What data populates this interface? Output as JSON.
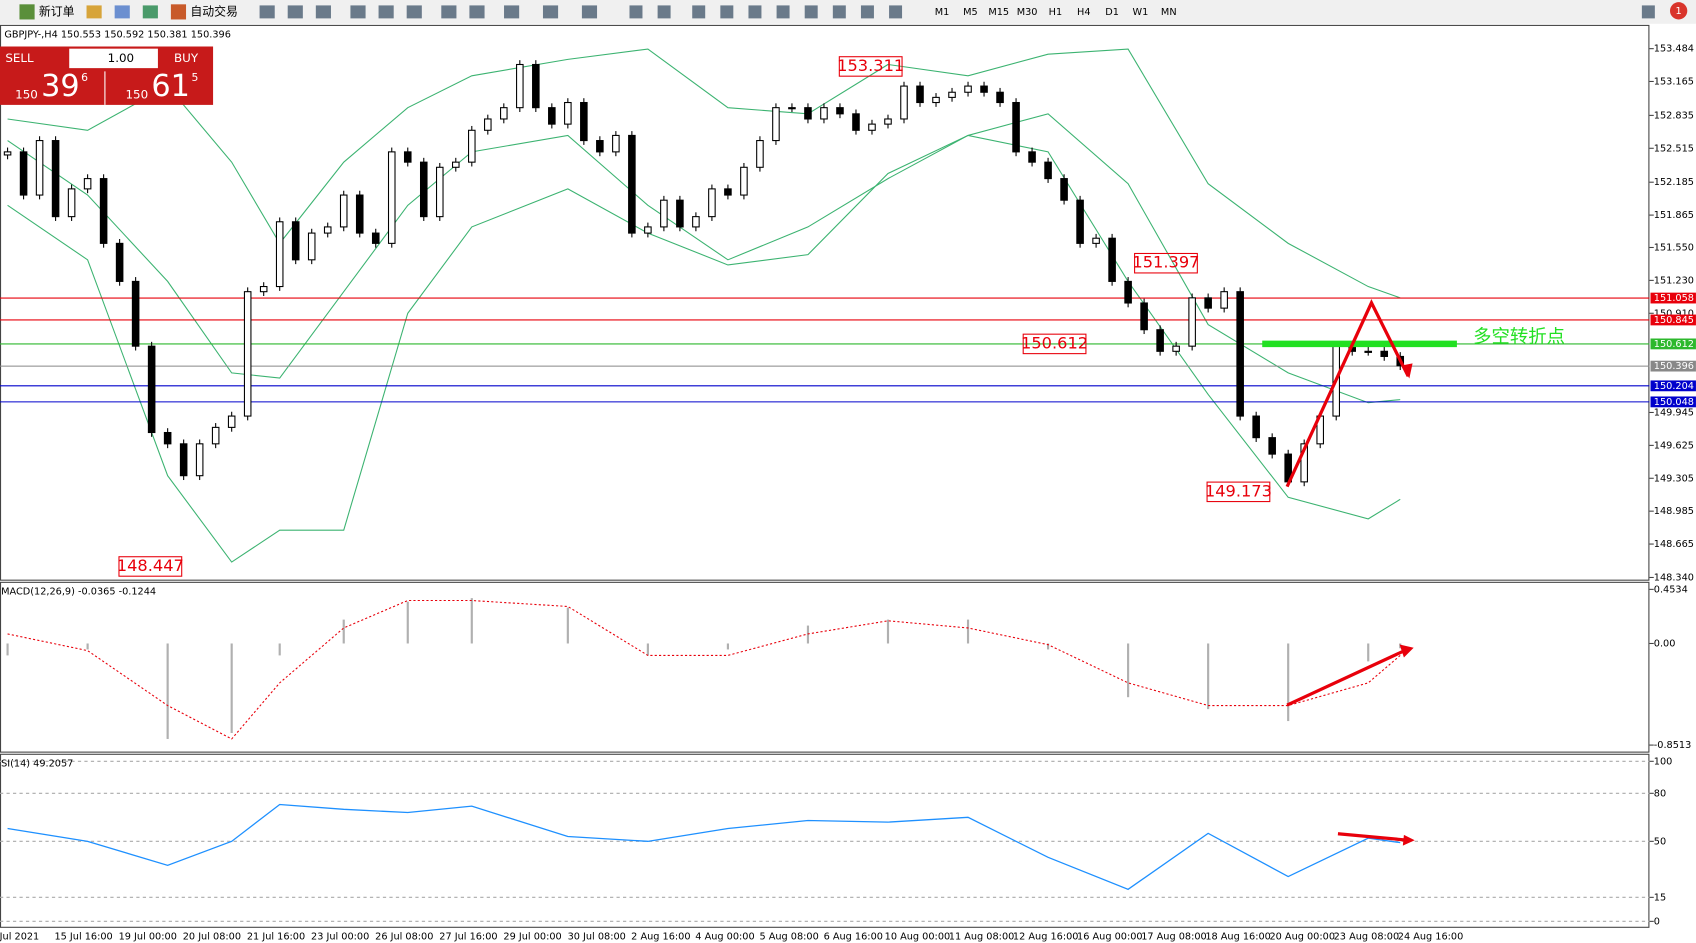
{
  "toolbar": {
    "new_order": "新订单",
    "auto_trading": "自动交易",
    "timeframes": [
      "M1",
      "M5",
      "M15",
      "M30",
      "H1",
      "H4",
      "D1",
      "W1",
      "MN"
    ],
    "alerts": "1"
  },
  "trade_panel": {
    "sell": "SELL",
    "buy": "BUY",
    "lot": "1.00",
    "bid_big": "150",
    "bid_main": "39",
    "bid_sup": "6",
    "ask_big": "150",
    "ask_main": "61",
    "ask_sup": "5"
  },
  "chart_data": [
    {
      "type": "candlestick",
      "title": "GBPJPY-,H4 150.553 150.592 150.381 150.396",
      "first_open": 152.45,
      "closes": [
        152.48,
        152.06,
        152.59,
        151.85,
        152.12,
        152.22,
        151.59,
        151.22,
        150.59,
        149.75,
        149.64,
        149.33,
        149.64,
        149.8,
        149.91,
        151.12,
        151.17,
        151.8,
        151.43,
        151.69,
        151.75,
        152.06,
        151.69,
        151.59,
        152.48,
        152.38,
        151.85,
        152.33,
        152.38,
        152.69,
        152.8,
        152.91,
        153.33,
        152.91,
        152.75,
        152.96,
        152.59,
        152.48,
        152.64,
        151.69,
        151.75,
        152.01,
        151.75,
        151.85,
        152.12,
        152.06,
        152.33,
        152.59,
        152.91,
        152.91,
        152.8,
        152.91,
        152.85,
        152.69,
        152.75,
        152.8,
        153.12,
        152.96,
        153.01,
        153.06,
        153.12,
        153.06,
        152.96,
        152.48,
        152.38,
        152.22,
        152.01,
        151.59,
        151.64,
        151.22,
        151.01,
        150.75,
        150.54,
        150.59,
        151.06,
        150.96,
        151.12,
        149.91,
        149.7,
        149.54,
        149.27,
        149.64,
        149.91,
        150.59,
        150.54,
        150.54,
        150.49,
        150.4
      ],
      "band_x": [
        0,
        5,
        10,
        14,
        17,
        21,
        25,
        29,
        35,
        40,
        45,
        50,
        55,
        60,
        65,
        70,
        75,
        80,
        85,
        87
      ],
      "upper": [
        152.8,
        152.69,
        153.12,
        152.38,
        151.59,
        152.38,
        152.91,
        153.22,
        153.38,
        153.48,
        152.91,
        152.85,
        153.33,
        153.22,
        153.43,
        153.48,
        152.17,
        151.59,
        151.17,
        151.06
      ],
      "middle": [
        152.59,
        152.06,
        151.22,
        150.33,
        150.28,
        151.12,
        151.96,
        152.48,
        152.64,
        151.96,
        151.43,
        151.75,
        152.22,
        152.64,
        152.85,
        152.17,
        150.8,
        150.33,
        150.04,
        150.07
      ],
      "lower": [
        151.96,
        151.43,
        149.33,
        148.49,
        148.8,
        148.8,
        150.91,
        151.75,
        152.12,
        151.69,
        151.38,
        151.48,
        152.27,
        152.64,
        152.48,
        151.22,
        150.12,
        149.12,
        148.91,
        149.1
      ],
      "band_color": "#3cb371",
      "ylim": [
        148.34,
        153.484
      ],
      "yticks": [
        153.484,
        153.165,
        152.835,
        152.515,
        152.185,
        151.865,
        {
          "value": 151.55,
          "label": "151.550"
        },
        {
          "value": 151.23,
          "label": "151.230"
        },
        {
          "value": 150.91,
          "label": "150.910"
        },
        149.945,
        149.625,
        149.305,
        148.985,
        148.665,
        {
          "value": 148.34,
          "label": "148.340"
        }
      ],
      "levels": [
        {
          "value": 151.058,
          "color": "#e8000b"
        },
        {
          "value": 150.845,
          "color": "#e8000b"
        },
        {
          "value": 150.612,
          "color": "#2db82d"
        },
        {
          "value": 150.396,
          "color": "#888888"
        },
        {
          "value": 150.204,
          "color": "#0000cc"
        },
        {
          "value": 150.048,
          "color": "#0000cc"
        }
      ],
      "annotations": [
        153.311,
        151.397,
        150.612,
        149.173,
        148.447
      ],
      "note": "多空转折点",
      "x_labels": [
        "Jul 2021",
        "15 Jul 16:00",
        "19 Jul 00:00",
        "20 Jul 08:00",
        "21 Jul 16:00",
        "23 Jul 00:00",
        "26 Jul 08:00",
        "27 Jul 16:00",
        "29 Jul 00:00",
        "30 Jul 08:00",
        "2 Aug 16:00",
        "4 Aug 00:00",
        "5 Aug 08:00",
        "6 Aug 16:00",
        "10 Aug 00:00",
        "11 Aug 08:00",
        "12 Aug 16:00",
        "16 Aug 00:00",
        "17 Aug 08:00",
        "18 Aug 16:00",
        "20 Aug 00:00",
        "23 Aug 08:00",
        "24 Aug 16:00"
      ]
    },
    {
      "type": "macd",
      "title": "MACD(12,26,9) -0.0365 -0.1244",
      "histogram": [
        -0.1,
        -0.05,
        -0.8,
        -0.75,
        -0.1,
        0.2,
        0.35,
        0.38,
        0.3,
        -0.1,
        -0.05,
        0.15,
        0.2,
        0.2,
        -0.05,
        -0.45,
        -0.55,
        -0.65,
        -0.15,
        -0.04
      ],
      "signal": [
        0.08,
        -0.06,
        -0.52,
        -0.8,
        -0.33,
        0.13,
        0.36,
        0.36,
        0.31,
        -0.1,
        -0.1,
        0.08,
        0.19,
        0.13,
        -0.01,
        -0.33,
        -0.52,
        -0.52,
        -0.33,
        -0.1
      ],
      "ylim": [
        -0.8513,
        0.4534
      ],
      "yticks": [
        0.4534,
        {
          "value": 0,
          "label": "0.00"
        },
        -0.8513
      ]
    },
    {
      "type": "rsi",
      "title": "SI(14) 49.2057",
      "values": [
        58,
        50,
        35,
        50,
        73,
        70,
        68,
        72,
        53,
        50,
        58,
        63,
        62,
        65,
        40,
        20,
        55,
        28,
        52,
        49.2
      ],
      "color": "#1e90ff",
      "ylim": [
        0,
        100
      ],
      "yticks": [
        100,
        80,
        50,
        15,
        0
      ]
    }
  ]
}
